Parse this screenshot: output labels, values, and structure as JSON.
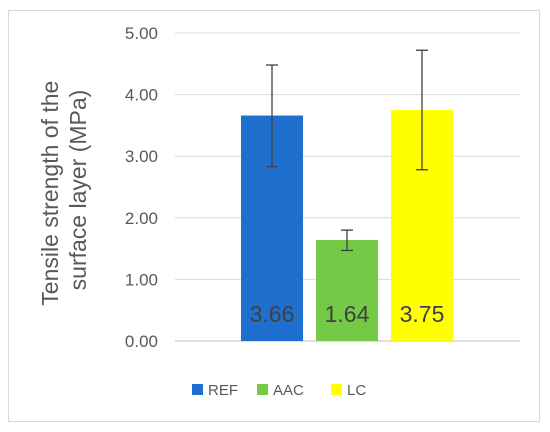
{
  "chart_data": {
    "type": "bar",
    "title": "",
    "xlabel": "",
    "ylabel_lines": [
      "Tensile strength of the",
      "surface layer (MPa)"
    ],
    "categories": [
      "REF",
      "AAC",
      "LC"
    ],
    "values": [
      3.66,
      1.64,
      3.75
    ],
    "data_labels": [
      "3.66",
      "1.64",
      "3.75"
    ],
    "error_high": [
      4.48,
      1.8,
      4.72
    ],
    "error_low": [
      2.83,
      1.47,
      2.78
    ],
    "colors": [
      "#1f6fcf",
      "#74c947",
      "#ffff00"
    ],
    "ylim": [
      0,
      5
    ],
    "yticks": [
      "0.00",
      "1.00",
      "2.00",
      "3.00",
      "4.00",
      "5.00"
    ],
    "grid": true,
    "legend_position": "bottom"
  }
}
